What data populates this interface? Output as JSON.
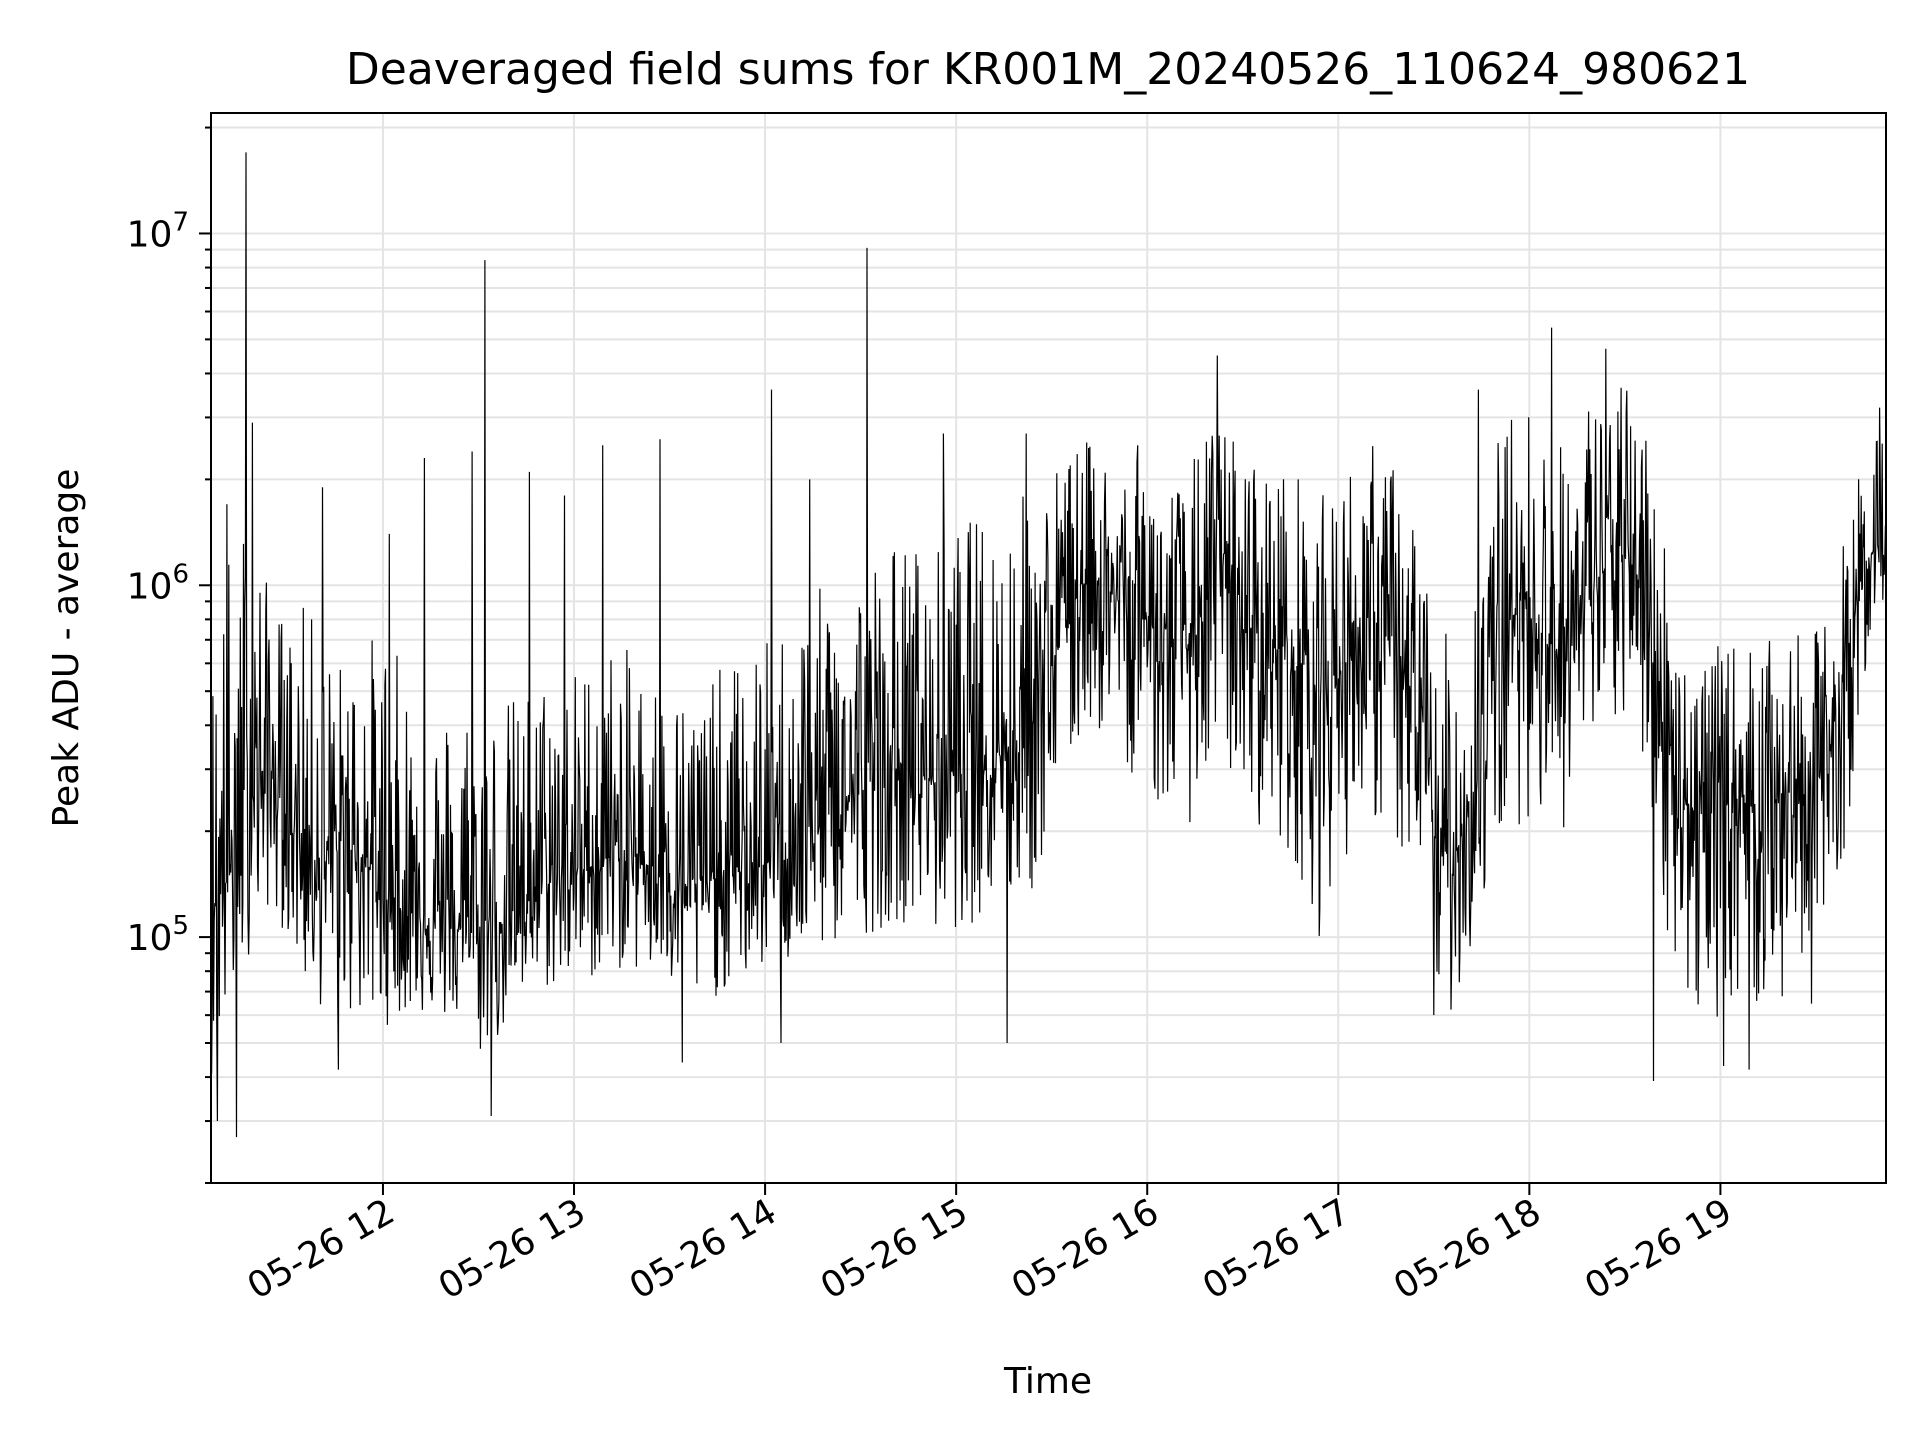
{
  "chart_data": {
    "type": "line",
    "title": "Deaveraged field sums for KR001M_20240526_110624_980621",
    "xlabel": "Time",
    "ylabel": "Peak ADU - average",
    "yscale": "log",
    "grid": true,
    "legend": "none",
    "xlim": [
      "2024-05-26 11:06",
      "2024-05-26 19:52"
    ],
    "ylim": [
      20000,
      22000000
    ],
    "x_ticks": [
      "05-26 12",
      "05-26 13",
      "05-26 14",
      "05-26 15",
      "05-26 16",
      "05-26 17",
      "05-26 18",
      "05-26 19"
    ],
    "x_tick_times": [
      "2024-05-26 12:00",
      "2024-05-26 13:00",
      "2024-05-26 14:00",
      "2024-05-26 15:00",
      "2024-05-26 16:00",
      "2024-05-26 17:00",
      "2024-05-26 18:00",
      "2024-05-26 19:00"
    ],
    "y_ticks": [
      {
        "value": 100000,
        "base": "10",
        "exp": "5"
      },
      {
        "value": 1000000,
        "base": "10",
        "exp": "6"
      },
      {
        "value": 10000000,
        "base": "10",
        "exp": "7"
      }
    ],
    "line_color": "#000000",
    "series": [
      {
        "x": [
          "2024-05-26 11:06",
          "2024-05-26 11:12",
          "2024-05-26 11:18",
          "2024-05-26 11:24",
          "2024-05-26 11:30",
          "2024-05-26 11:36",
          "2024-05-26 11:42",
          "2024-05-26 11:48",
          "2024-05-26 11:54",
          "2024-05-26 12:00",
          "2024-05-26 12:06",
          "2024-05-26 12:12",
          "2024-05-26 12:18",
          "2024-05-26 12:24",
          "2024-05-26 12:30",
          "2024-05-26 12:36",
          "2024-05-26 12:42",
          "2024-05-26 12:48",
          "2024-05-26 12:54",
          "2024-05-26 13:00",
          "2024-05-26 13:06",
          "2024-05-26 13:12",
          "2024-05-26 13:18",
          "2024-05-26 13:24",
          "2024-05-26 13:30",
          "2024-05-26 13:36",
          "2024-05-26 13:42",
          "2024-05-26 13:48",
          "2024-05-26 13:54",
          "2024-05-26 14:00",
          "2024-05-26 14:06",
          "2024-05-26 14:12",
          "2024-05-26 14:18",
          "2024-05-26 14:24",
          "2024-05-26 14:30",
          "2024-05-26 14:36",
          "2024-05-26 14:42",
          "2024-05-26 14:48",
          "2024-05-26 14:54",
          "2024-05-26 15:00",
          "2024-05-26 15:06",
          "2024-05-26 15:12",
          "2024-05-26 15:18",
          "2024-05-26 15:24",
          "2024-05-26 15:30",
          "2024-05-26 15:36",
          "2024-05-26 15:42",
          "2024-05-26 15:48",
          "2024-05-26 15:54",
          "2024-05-26 16:00",
          "2024-05-26 16:06",
          "2024-05-26 16:12",
          "2024-05-26 16:18",
          "2024-05-26 16:24",
          "2024-05-26 16:30",
          "2024-05-26 16:36",
          "2024-05-26 16:42",
          "2024-05-26 16:48",
          "2024-05-26 16:54",
          "2024-05-26 17:00",
          "2024-05-26 17:06",
          "2024-05-26 17:12",
          "2024-05-26 17:18",
          "2024-05-26 17:24",
          "2024-05-26 17:30",
          "2024-05-26 17:36",
          "2024-05-26 17:42",
          "2024-05-26 17:48",
          "2024-05-26 17:54",
          "2024-05-26 18:00",
          "2024-05-26 18:06",
          "2024-05-26 18:12",
          "2024-05-26 18:18",
          "2024-05-26 18:24",
          "2024-05-26 18:30",
          "2024-05-26 18:36",
          "2024-05-26 18:42",
          "2024-05-26 18:48",
          "2024-05-26 18:54",
          "2024-05-26 19:00",
          "2024-05-26 19:06",
          "2024-05-26 19:12",
          "2024-05-26 19:18",
          "2024-05-26 19:24",
          "2024-05-26 19:30",
          "2024-05-26 19:36",
          "2024-05-26 19:42",
          "2024-05-26 19:48",
          "2024-05-26 19:52"
        ],
        "median": [
          130000,
          150000,
          250000,
          300000,
          220000,
          180000,
          160000,
          190000,
          170000,
          130000,
          120000,
          115000,
          110000,
          105000,
          100000,
          110000,
          120000,
          140000,
          145000,
          150000,
          160000,
          170000,
          165000,
          160000,
          150000,
          140000,
          145000,
          150000,
          155000,
          160000,
          180000,
          200000,
          220000,
          240000,
          260000,
          280000,
          300000,
          290000,
          280000,
          300000,
          320000,
          340000,
          360000,
          420000,
          600000,
          900000,
          1100000,
          950000,
          850000,
          800000,
          700000,
          650000,
          900000,
          1000000,
          800000,
          700000,
          650000,
          600000,
          500000,
          550000,
          700000,
          750000,
          650000,
          450000,
          200000,
          160000,
          250000,
          500000,
          800000,
          900000,
          700000,
          600000,
          1000000,
          1100000,
          1200000,
          1000000,
          450000,
          250000,
          220000,
          230000,
          250000,
          240000,
          250000,
          260000,
          270000,
          380000,
          800000,
          1300000,
          1300000
        ],
        "low": [
          40000,
          60000,
          90000,
          120000,
          100000,
          70000,
          60000,
          60000,
          55000,
          55000,
          60000,
          60000,
          58000,
          55000,
          45000,
          50000,
          60000,
          70000,
          70000,
          75000,
          75000,
          80000,
          80000,
          75000,
          70000,
          60000,
          65000,
          70000,
          75000,
          80000,
          80000,
          85000,
          90000,
          95000,
          100000,
          105000,
          110000,
          110000,
          100000,
          105000,
          110000,
          115000,
          120000,
          130000,
          200000,
          300000,
          400000,
          350000,
          300000,
          250000,
          220000,
          200000,
          250000,
          300000,
          250000,
          200000,
          180000,
          150000,
          100000,
          150000,
          200000,
          210000,
          180000,
          120000,
          70000,
          60000,
          90000,
          150000,
          200000,
          220000,
          200000,
          200000,
          300000,
          350000,
          400000,
          300000,
          120000,
          60000,
          55000,
          60000,
          65000,
          60000,
          60000,
          62000,
          65000,
          100000,
          300000,
          800000,
          900000
        ],
        "high": [
          600000,
          1500000,
          1700000,
          1000000,
          800000,
          900000,
          700000,
          600000,
          700000,
          800000,
          600000,
          500000,
          450000,
          500000,
          500000,
          480000,
          500000,
          550000,
          600000,
          600000,
          650000,
          700000,
          650000,
          600000,
          550000,
          500000,
          550000,
          600000,
          650000,
          700000,
          800000,
          900000,
          1000000,
          1100000,
          1200000,
          1300000,
          1400000,
          1350000,
          1300000,
          1500000,
          1600000,
          1700000,
          1800000,
          2000000,
          2200000,
          2500000,
          2600000,
          2400000,
          2300000,
          2200000,
          2100000,
          2000000,
          2800000,
          3000000,
          2500000,
          2300000,
          2200000,
          2100000,
          1800000,
          2000000,
          2500000,
          2600000,
          2200000,
          1800000,
          800000,
          700000,
          1200000,
          2500000,
          3200000,
          3300000,
          2800000,
          2500000,
          3500000,
          3600000,
          3800000,
          3400000,
          1500000,
          700000,
          650000,
          680000,
          700000,
          690000,
          700000,
          720000,
          750000,
          1000000,
          2000000,
          2800000,
          2900000
        ],
        "spikes": [
          {
            "x": "2024-05-26 11:17",
            "y": 17000000
          },
          {
            "x": "2024-05-26 11:19",
            "y": 2900000
          },
          {
            "x": "2024-05-26 11:11",
            "y": 1700000
          },
          {
            "x": "2024-05-26 11:41",
            "y": 1900000
          },
          {
            "x": "2024-05-26 12:02",
            "y": 1400000
          },
          {
            "x": "2024-05-26 12:13",
            "y": 2300000
          },
          {
            "x": "2024-05-26 12:28",
            "y": 2400000
          },
          {
            "x": "2024-05-26 12:32",
            "y": 8400000
          },
          {
            "x": "2024-05-26 12:46",
            "y": 2100000
          },
          {
            "x": "2024-05-26 12:57",
            "y": 1800000
          },
          {
            "x": "2024-05-26 13:09",
            "y": 2500000
          },
          {
            "x": "2024-05-26 13:27",
            "y": 2600000
          },
          {
            "x": "2024-05-26 14:02",
            "y": 3600000
          },
          {
            "x": "2024-05-26 14:14",
            "y": 2000000
          },
          {
            "x": "2024-05-26 14:32",
            "y": 9100000
          },
          {
            "x": "2024-05-26 14:56",
            "y": 2700000
          },
          {
            "x": "2024-05-26 15:22",
            "y": 2700000
          },
          {
            "x": "2024-05-26 15:57",
            "y": 2500000
          },
          {
            "x": "2024-05-26 16:22",
            "y": 4500000
          },
          {
            "x": "2024-05-26 17:44",
            "y": 3600000
          },
          {
            "x": "2024-05-26 18:07",
            "y": 5400000
          },
          {
            "x": "2024-05-26 18:24",
            "y": 4700000
          },
          {
            "x": "2024-05-26 19:50",
            "y": 3200000
          }
        ],
        "dips": [
          {
            "x": "2024-05-26 11:08",
            "y": 30000
          },
          {
            "x": "2024-05-26 11:14",
            "y": 27000
          },
          {
            "x": "2024-05-26 11:46",
            "y": 42000
          },
          {
            "x": "2024-05-26 12:34",
            "y": 31000
          },
          {
            "x": "2024-05-26 13:34",
            "y": 44000
          },
          {
            "x": "2024-05-26 14:05",
            "y": 50000
          },
          {
            "x": "2024-05-26 15:16",
            "y": 50000
          },
          {
            "x": "2024-05-26 17:30",
            "y": 60000
          },
          {
            "x": "2024-05-26 18:39",
            "y": 39000
          },
          {
            "x": "2024-05-26 19:01",
            "y": 43000
          },
          {
            "x": "2024-05-26 19:09",
            "y": 42000
          }
        ]
      }
    ]
  }
}
